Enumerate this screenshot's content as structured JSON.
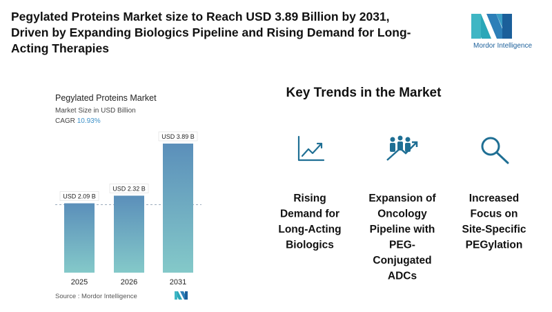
{
  "header": {
    "title_lines": [
      "Pegylated Proteins Market size to Reach USD 3.89 Billion by 2031,",
      "Driven by Expanding Biologics Pipeline and Rising Demand for Long-",
      "Acting Therapies"
    ]
  },
  "logo": {
    "text": "Mordor Intelligence"
  },
  "chart_data": {
    "type": "bar",
    "title": "Pegylated Proteins Market",
    "subtitle": "Market Size in USD Billion",
    "cagr_label": "CAGR",
    "cagr": "10.93%",
    "categories": [
      "2025",
      "2026",
      "2031"
    ],
    "values": [
      2.09,
      2.32,
      3.89
    ],
    "value_labels": [
      "USD 2.09 B",
      "USD 2.32 B",
      "USD 3.89 B"
    ],
    "colors": [
      "#5b8fba",
      "#84c9c9"
    ],
    "source": "Source :  Mordor Intelligence"
  },
  "trends": {
    "title": "Key Trends in the Market",
    "items": [
      {
        "lines": [
          "Rising",
          "Demand for",
          "Long-Acting",
          "Biologics"
        ]
      },
      {
        "lines": [
          "Expansion of",
          "Oncology",
          "Pipeline with",
          "PEG-",
          "Conjugated",
          "ADCs"
        ]
      },
      {
        "lines": [
          "Increased",
          "Focus on",
          "Site-Specific",
          "PEGylation"
        ]
      }
    ]
  }
}
